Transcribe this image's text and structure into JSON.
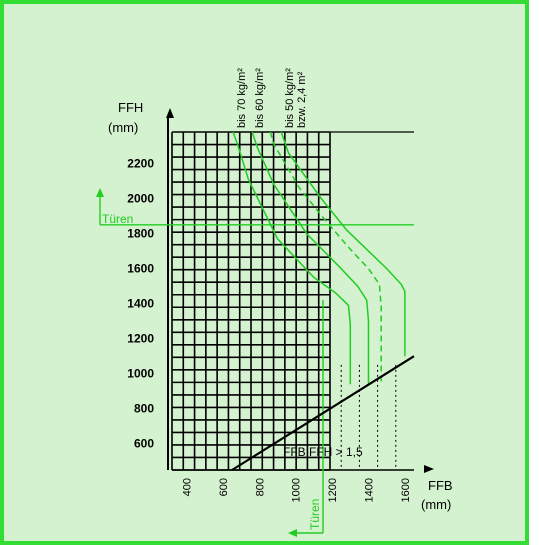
{
  "chart_data": {
    "type": "line",
    "title": "",
    "xlabel": "FFB",
    "xunit": "(mm)",
    "ylabel": "FFH",
    "yunit": "(mm)",
    "xlim": [
      320,
      1650
    ],
    "ylim": [
      450,
      2380
    ],
    "x_ticks": [
      400,
      600,
      800,
      1000,
      1200,
      1400,
      1600
    ],
    "y_ticks": [
      600,
      800,
      1000,
      1200,
      1400,
      1600,
      1800,
      2000,
      2200
    ],
    "grid": true,
    "series": [
      {
        "name": "bis 70 kg/m²",
        "style": "solid",
        "points": [
          [
            655,
            2380
          ],
          [
            680,
            2310
          ],
          [
            740,
            2110
          ],
          [
            900,
            1770
          ],
          [
            1100,
            1550
          ],
          [
            1220,
            1460
          ],
          [
            1290,
            1390
          ],
          [
            1300,
            1280
          ],
          [
            1300,
            1080
          ],
          [
            1300,
            940
          ]
        ]
      },
      {
        "name": "bis 60 kg/m²",
        "style": "solid",
        "points": [
          [
            760,
            2380
          ],
          [
            790,
            2290
          ],
          [
            880,
            2080
          ],
          [
            1060,
            1800
          ],
          [
            1240,
            1610
          ],
          [
            1340,
            1500
          ],
          [
            1390,
            1420
          ],
          [
            1400,
            1300
          ],
          [
            1400,
            1080
          ],
          [
            1400,
            940
          ]
        ]
      },
      {
        "name": "bis 50 kg/m² bzw. 2,4 m²",
        "style": "dashed",
        "points": [
          [
            860,
            2380
          ],
          [
            880,
            2310
          ],
          [
            1020,
            2060
          ],
          [
            1160,
            1880
          ],
          [
            1300,
            1710
          ],
          [
            1400,
            1600
          ],
          [
            1460,
            1510
          ],
          [
            1470,
            1380
          ],
          [
            1470,
            1080
          ],
          [
            1470,
            940
          ]
        ]
      },
      {
        "name": "",
        "style": "solid",
        "points": [
          [
            920,
            2380
          ],
          [
            960,
            2260
          ],
          [
            1140,
            2000
          ],
          [
            1280,
            1820
          ],
          [
            1410,
            1690
          ],
          [
            1500,
            1600
          ],
          [
            1580,
            1510
          ],
          [
            1600,
            1470
          ],
          [
            1600,
            1200
          ],
          [
            1600,
            1100
          ]
        ]
      }
    ],
    "boundary_line": {
      "label": "FFB  FFH > 1,5",
      "points": [
        [
          650,
          450
        ],
        [
          1650,
          1100
        ]
      ]
    },
    "reference_lines": [
      {
        "label": "Türen",
        "axis": "y",
        "value": 1850
      },
      {
        "label": "Türen",
        "axis": "x",
        "value": 1150
      }
    ]
  }
}
